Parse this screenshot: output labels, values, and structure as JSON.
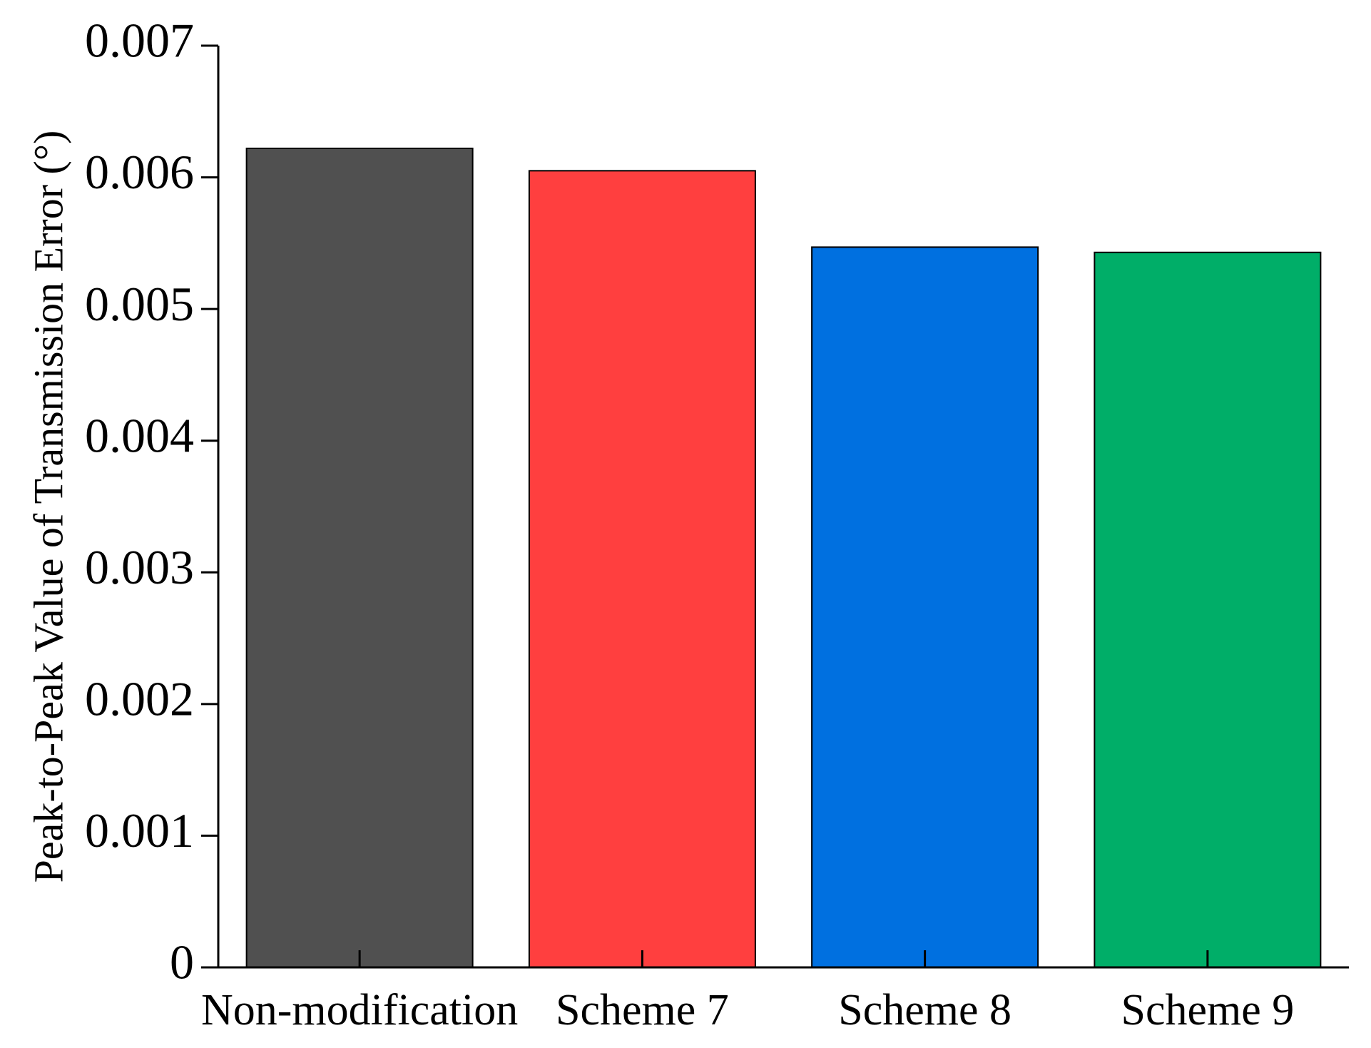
{
  "chart_data": {
    "type": "bar",
    "y_label": "Peak-to-Peak Value of Transmission Error (°)",
    "categories": [
      "Non-modification",
      "Scheme 7",
      "Scheme 8",
      "Scheme 9"
    ],
    "values": [
      0.00622,
      0.00605,
      0.00547,
      0.00543
    ],
    "colors": [
      "#505050",
      "#ff3f3f",
      "#0070e0",
      "#00ae68"
    ],
    "ylim": [
      0,
      0.007
    ],
    "yticks": [
      0,
      0.001,
      0.002,
      0.003,
      0.004,
      0.005,
      0.006,
      0.007
    ],
    "grid": false
  }
}
